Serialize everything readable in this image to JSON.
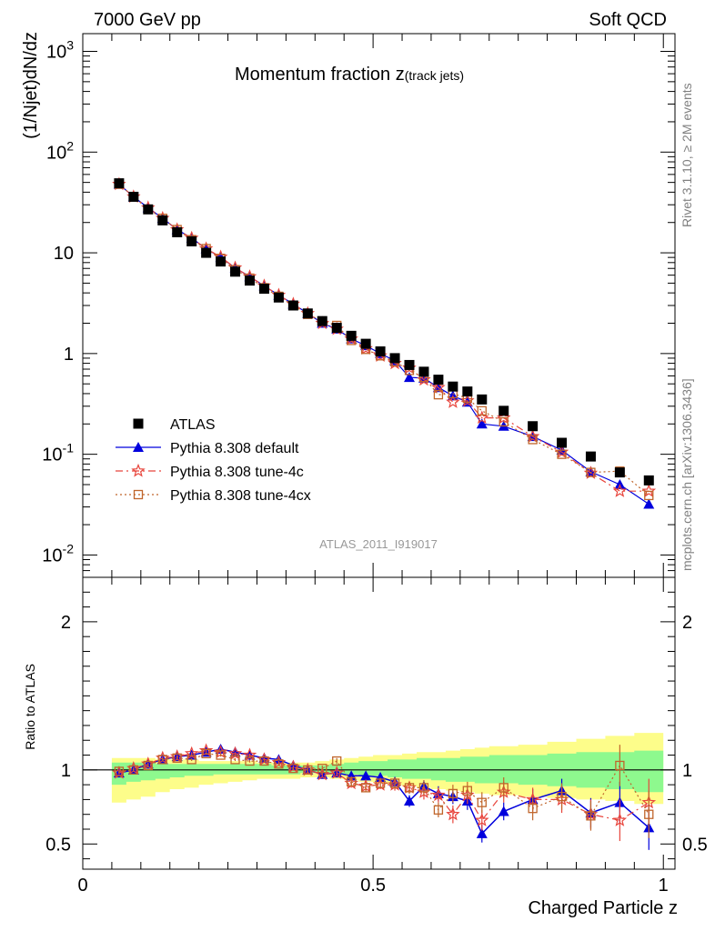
{
  "header": {
    "left": "7000 GeV pp",
    "right": "Soft QCD"
  },
  "side_text": {
    "rivet": "Rivet 3.1.10, ≥ 2M events",
    "mcplots": "mcplots.cern.ch [arXiv:1306.3436]"
  },
  "plot_title": {
    "main": "Momentum fraction ",
    "var": "z",
    "sub": "(track jets)"
  },
  "analysis_ref": "ATLAS_2011_I919017",
  "colors": {
    "atlas": "#000000",
    "default": "#0000dd",
    "tune4c": "#e8453c",
    "tune4cx": "#c0652b",
    "band_green": "#8ef98e",
    "band_yellow": "#fdfd8a"
  },
  "chart_data": [
    {
      "type": "scatter",
      "scale": "log",
      "ylabel": "(1/Njet)dN/dz",
      "ylim": [
        0.006,
        1500
      ],
      "y_tick_labels": [
        "10^-2",
        "10^-1",
        "1",
        "10",
        "10^2",
        "10^3"
      ],
      "x": [
        0.0625,
        0.0875,
        0.1125,
        0.1375,
        0.1625,
        0.1875,
        0.2125,
        0.2375,
        0.2625,
        0.2875,
        0.3125,
        0.3375,
        0.3625,
        0.3875,
        0.4125,
        0.4375,
        0.4625,
        0.4875,
        0.5125,
        0.5375,
        0.5625,
        0.5875,
        0.6125,
        0.6375,
        0.6625,
        0.6875,
        0.725,
        0.775,
        0.825,
        0.875,
        0.925,
        0.975
      ],
      "legend_position": "lower-left",
      "series": [
        {
          "name": "ATLAS",
          "style": "square",
          "values": [
            49,
            36,
            27,
            21,
            16,
            13,
            10,
            8.2,
            6.5,
            5.3,
            4.4,
            3.6,
            3.0,
            2.5,
            2.1,
            1.8,
            1.5,
            1.25,
            1.05,
            0.9,
            0.77,
            0.66,
            0.55,
            0.47,
            0.42,
            0.35,
            0.27,
            0.19,
            0.13,
            0.095,
            0.066,
            0.055
          ]
        },
        {
          "name": "Pythia 8.308 default",
          "style": "triangle",
          "values": [
            48,
            36,
            28,
            22,
            17,
            14,
            11,
            9.0,
            7.1,
            5.8,
            4.7,
            3.8,
            3.1,
            2.5,
            2.0,
            1.75,
            1.4,
            1.2,
            1.0,
            0.85,
            0.58,
            0.57,
            0.46,
            0.38,
            0.33,
            0.2,
            0.19,
            0.15,
            0.11,
            0.067,
            0.05,
            0.032
          ]
        },
        {
          "name": "Pythia 8.308 tune-4c",
          "style": "star",
          "values": [
            48,
            36,
            28,
            22,
            17,
            14,
            11,
            9.1,
            7.1,
            5.8,
            4.7,
            3.8,
            3.1,
            2.5,
            2.0,
            1.75,
            1.4,
            1.12,
            0.95,
            0.8,
            0.72,
            0.55,
            0.46,
            0.33,
            0.34,
            0.23,
            0.23,
            0.15,
            0.105,
            0.065,
            0.043,
            0.043
          ]
        },
        {
          "name": "Pythia 8.308 tune-4cx",
          "style": "open-square",
          "values": [
            48,
            36,
            27,
            22,
            17,
            13.5,
            11,
            8.8,
            6.8,
            5.6,
            4.5,
            3.7,
            3.0,
            2.45,
            2.1,
            1.9,
            1.35,
            1.1,
            0.95,
            0.83,
            0.68,
            0.58,
            0.39,
            0.4,
            0.36,
            0.27,
            0.21,
            0.14,
            0.1,
            0.066,
            0.068,
            0.039
          ]
        }
      ]
    },
    {
      "type": "line",
      "xlabel": "Charged Particle z",
      "ylabel": "Ratio to ATLAS",
      "xlim": [
        0,
        1.02
      ],
      "ylim": [
        0.33,
        2.3
      ],
      "x_tick_labels": [
        "0",
        "0.5",
        "1"
      ],
      "y_tick_labels": [
        "0.5",
        "1",
        "2"
      ],
      "x_edges": [
        0.05,
        0.075,
        0.1,
        0.125,
        0.15,
        0.175,
        0.2,
        0.225,
        0.25,
        0.275,
        0.3,
        0.325,
        0.35,
        0.375,
        0.4,
        0.425,
        0.45,
        0.475,
        0.5,
        0.525,
        0.55,
        0.575,
        0.6,
        0.625,
        0.65,
        0.675,
        0.7,
        0.75,
        0.8,
        0.85,
        0.9,
        0.95,
        1.0
      ],
      "band_inner": {
        "lower": [
          0.9,
          0.92,
          0.93,
          0.94,
          0.95,
          0.96,
          0.96,
          0.97,
          0.97,
          0.97,
          0.97,
          0.97,
          0.97,
          0.98,
          0.98,
          0.97,
          0.97,
          0.96,
          0.96,
          0.95,
          0.94,
          0.94,
          0.93,
          0.92,
          0.92,
          0.91,
          0.91,
          0.9,
          0.89,
          0.88,
          0.87,
          0.85
        ],
        "upper": [
          1.05,
          1.05,
          1.05,
          1.04,
          1.04,
          1.04,
          1.04,
          1.04,
          1.04,
          1.04,
          1.04,
          1.03,
          1.03,
          1.03,
          1.03,
          1.04,
          1.05,
          1.06,
          1.06,
          1.07,
          1.07,
          1.08,
          1.08,
          1.08,
          1.09,
          1.09,
          1.1,
          1.1,
          1.11,
          1.12,
          1.12,
          1.13
        ]
      },
      "band_outer": {
        "lower": [
          0.78,
          0.8,
          0.82,
          0.85,
          0.87,
          0.88,
          0.9,
          0.91,
          0.92,
          0.93,
          0.94,
          0.94,
          0.94,
          0.95,
          0.95,
          0.94,
          0.93,
          0.92,
          0.91,
          0.9,
          0.89,
          0.88,
          0.87,
          0.86,
          0.85,
          0.84,
          0.83,
          0.82,
          0.81,
          0.8,
          0.79,
          0.77
        ],
        "upper": [
          1.08,
          1.08,
          1.08,
          1.07,
          1.07,
          1.07,
          1.06,
          1.06,
          1.06,
          1.06,
          1.05,
          1.05,
          1.05,
          1.05,
          1.06,
          1.07,
          1.08,
          1.09,
          1.1,
          1.1,
          1.11,
          1.12,
          1.12,
          1.13,
          1.14,
          1.15,
          1.16,
          1.17,
          1.19,
          1.21,
          1.23,
          1.25
        ]
      },
      "series": [
        {
          "name": "Pythia 8.308 default",
          "values": [
            0.98,
            1.0,
            1.04,
            1.07,
            1.09,
            1.1,
            1.12,
            1.14,
            1.12,
            1.1,
            1.08,
            1.07,
            1.03,
            1.0,
            0.97,
            0.98,
            0.96,
            0.96,
            0.95,
            0.92,
            0.79,
            0.89,
            0.84,
            0.82,
            0.79,
            0.57,
            0.72,
            0.8,
            0.86,
            0.71,
            0.78,
            0.61
          ],
          "errors": [
            0.01,
            0.01,
            0.01,
            0.01,
            0.01,
            0.01,
            0.01,
            0.01,
            0.01,
            0.01,
            0.01,
            0.01,
            0.01,
            0.02,
            0.02,
            0.02,
            0.02,
            0.02,
            0.03,
            0.03,
            0.04,
            0.04,
            0.05,
            0.05,
            0.06,
            0.06,
            0.06,
            0.07,
            0.08,
            0.1,
            0.14,
            0.15
          ]
        },
        {
          "name": "Pythia 8.308 tune-4c",
          "values": [
            0.98,
            1.01,
            1.04,
            1.08,
            1.09,
            1.11,
            1.13,
            1.12,
            1.11,
            1.1,
            1.07,
            1.05,
            1.02,
            1.0,
            0.97,
            0.98,
            0.91,
            0.89,
            0.9,
            0.9,
            0.88,
            0.85,
            0.83,
            0.7,
            0.83,
            0.66,
            0.85,
            0.8,
            0.8,
            0.7,
            0.66,
            0.78
          ],
          "errors": [
            0.01,
            0.01,
            0.01,
            0.01,
            0.01,
            0.01,
            0.01,
            0.01,
            0.01,
            0.01,
            0.01,
            0.01,
            0.01,
            0.02,
            0.02,
            0.02,
            0.03,
            0.03,
            0.03,
            0.04,
            0.04,
            0.05,
            0.05,
            0.06,
            0.06,
            0.07,
            0.07,
            0.08,
            0.09,
            0.1,
            0.14,
            0.16
          ]
        },
        {
          "name": "Pythia 8.308 tune-4cx",
          "values": [
            0.99,
            1.0,
            1.03,
            1.07,
            1.08,
            1.07,
            1.11,
            1.1,
            1.07,
            1.06,
            1.06,
            1.04,
            1.01,
            1.0,
            1.01,
            1.06,
            0.92,
            0.88,
            0.91,
            0.91,
            0.88,
            0.88,
            0.73,
            0.84,
            0.86,
            0.78,
            0.88,
            0.74,
            0.82,
            0.69,
            1.03,
            0.7
          ],
          "errors": [
            0.01,
            0.01,
            0.01,
            0.01,
            0.01,
            0.01,
            0.01,
            0.01,
            0.01,
            0.01,
            0.01,
            0.01,
            0.01,
            0.02,
            0.02,
            0.02,
            0.03,
            0.03,
            0.03,
            0.04,
            0.04,
            0.05,
            0.05,
            0.06,
            0.06,
            0.07,
            0.07,
            0.08,
            0.09,
            0.1,
            0.14,
            0.16
          ]
        }
      ]
    }
  ]
}
